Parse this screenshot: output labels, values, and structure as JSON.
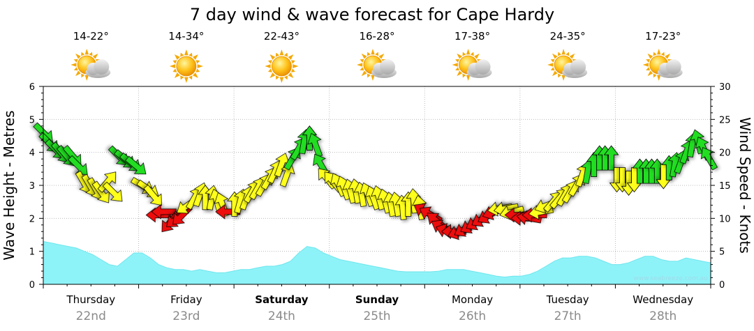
{
  "chart_data": {
    "type": "area",
    "title": "7 day wind & wave forecast for Cape Hardy",
    "ylabel": "Wave Height - Metres",
    "y2label": "Wind Speed - Knots",
    "ylim": [
      0,
      6
    ],
    "y2lim": [
      0,
      30
    ],
    "yticks": [
      "0",
      "1",
      "2",
      "3",
      "4",
      "5",
      "6"
    ],
    "y2ticks": [
      "0",
      "5",
      "10",
      "15",
      "20",
      "25",
      "30"
    ],
    "watermark": "www.seabreeze.com.au",
    "colors": {
      "wave_fill": "#8ef3f8",
      "wind_green": "#22dd22",
      "wind_yellow": "#ffff1a",
      "wind_red": "#ee1111",
      "grid": "#bbbbbb"
    },
    "days": [
      {
        "name": "Thursday",
        "date": "22nd",
        "temp": "14-22°",
        "icon": "sun-cloud-icon",
        "bold": false
      },
      {
        "name": "Friday",
        "date": "23rd",
        "temp": "14-34°",
        "icon": "sun-icon",
        "bold": false
      },
      {
        "name": "Saturday",
        "date": "24th",
        "temp": "22-43°",
        "icon": "sun-icon",
        "bold": true
      },
      {
        "name": "Sunday",
        "date": "25th",
        "temp": "16-28°",
        "icon": "sun-cloud-icon",
        "bold": true
      },
      {
        "name": "Monday",
        "date": "26th",
        "temp": "17-38°",
        "icon": "sun-cloud-icon",
        "bold": false
      },
      {
        "name": "Tuesday",
        "date": "27th",
        "temp": "24-35°",
        "icon": "sun-cloud-icon",
        "bold": false
      },
      {
        "name": "Wednesday",
        "date": "28th",
        "temp": "17-23°",
        "icon": "sun-cloud-icon",
        "bold": false
      }
    ],
    "wave_height_m": [
      1.3,
      1.25,
      1.2,
      1.15,
      1.1,
      1.0,
      0.9,
      0.75,
      0.6,
      0.55,
      0.75,
      0.95,
      0.95,
      0.8,
      0.6,
      0.5,
      0.45,
      0.45,
      0.4,
      0.45,
      0.4,
      0.35,
      0.35,
      0.4,
      0.45,
      0.45,
      0.5,
      0.55,
      0.55,
      0.6,
      0.7,
      0.95,
      1.15,
      1.1,
      0.95,
      0.85,
      0.75,
      0.7,
      0.65,
      0.6,
      0.55,
      0.5,
      0.45,
      0.4,
      0.38,
      0.38,
      0.38,
      0.38,
      0.4,
      0.45,
      0.45,
      0.45,
      0.4,
      0.35,
      0.3,
      0.25,
      0.22,
      0.25,
      0.25,
      0.3,
      0.4,
      0.55,
      0.7,
      0.8,
      0.8,
      0.85,
      0.85,
      0.8,
      0.7,
      0.6,
      0.6,
      0.65,
      0.75,
      0.85,
      0.85,
      0.75,
      0.7,
      0.7,
      0.8,
      0.75,
      0.7,
      0.65
    ],
    "wind": [
      {
        "t": 0.0,
        "kn": 23,
        "dir": 135,
        "c": "green"
      },
      {
        "t": 0.08,
        "kn": 21.5,
        "dir": 135,
        "c": "green"
      },
      {
        "t": 0.17,
        "kn": 20.5,
        "dir": 135,
        "c": "green"
      },
      {
        "t": 0.25,
        "kn": 20,
        "dir": 140,
        "c": "green"
      },
      {
        "t": 0.33,
        "kn": 19.5,
        "dir": 140,
        "c": "green"
      },
      {
        "t": 0.42,
        "kn": 19.5,
        "dir": 140,
        "c": "green"
      },
      {
        "t": 0.5,
        "kn": 18,
        "dir": 135,
        "c": "green"
      },
      {
        "t": 0.58,
        "kn": 15.5,
        "dir": 150,
        "c": "yellow"
      },
      {
        "t": 0.67,
        "kn": 15,
        "dir": 150,
        "c": "yellow"
      },
      {
        "t": 0.75,
        "kn": 14.5,
        "dir": 150,
        "c": "yellow"
      },
      {
        "t": 0.83,
        "kn": 14,
        "dir": 145,
        "c": "yellow"
      },
      {
        "t": 0.92,
        "kn": 15.5,
        "dir": 40,
        "c": "yellow"
      },
      {
        "t": 1.0,
        "kn": 14,
        "dir": 135,
        "c": "yellow"
      },
      {
        "t": 1.08,
        "kn": 19.5,
        "dir": 135,
        "c": "green"
      },
      {
        "t": 1.17,
        "kn": 19,
        "dir": 130,
        "c": "green"
      },
      {
        "t": 1.25,
        "kn": 18.5,
        "dir": 130,
        "c": "green"
      },
      {
        "t": 1.33,
        "kn": 18,
        "dir": 130,
        "c": "green"
      },
      {
        "t": 1.42,
        "kn": 15,
        "dir": 120,
        "c": "yellow"
      },
      {
        "t": 1.5,
        "kn": 14.5,
        "dir": 125,
        "c": "yellow"
      },
      {
        "t": 1.58,
        "kn": 13.5,
        "dir": 140,
        "c": "yellow"
      },
      {
        "t": 1.67,
        "kn": 10.5,
        "dir": 270,
        "c": "red"
      },
      {
        "t": 1.75,
        "kn": 11,
        "dir": 270,
        "c": "red"
      },
      {
        "t": 1.83,
        "kn": 9.5,
        "dir": 220,
        "c": "red"
      },
      {
        "t": 1.92,
        "kn": 10,
        "dir": 230,
        "c": "red"
      },
      {
        "t": 2.0,
        "kn": 10.5,
        "dir": 225,
        "c": "red"
      },
      {
        "t": 2.08,
        "kn": 12,
        "dir": 235,
        "c": "yellow"
      },
      {
        "t": 2.17,
        "kn": 13,
        "dir": 30,
        "c": "yellow"
      },
      {
        "t": 2.25,
        "kn": 13.5,
        "dir": 20,
        "c": "yellow"
      },
      {
        "t": 2.33,
        "kn": 13,
        "dir": 0,
        "c": "yellow"
      },
      {
        "t": 2.42,
        "kn": 13,
        "dir": 10,
        "c": "yellow"
      },
      {
        "t": 2.5,
        "kn": 12.5,
        "dir": 345,
        "c": "yellow"
      },
      {
        "t": 2.58,
        "kn": 12,
        "dir": 340,
        "c": "yellow"
      },
      {
        "t": 2.67,
        "kn": 11,
        "dir": 270,
        "c": "red"
      },
      {
        "t": 2.75,
        "kn": 12,
        "dir": 0,
        "c": "yellow"
      },
      {
        "t": 2.83,
        "kn": 12.5,
        "dir": 15,
        "c": "yellow"
      },
      {
        "t": 2.92,
        "kn": 13,
        "dir": 20,
        "c": "yellow"
      },
      {
        "t": 3.0,
        "kn": 14,
        "dir": 30,
        "c": "yellow"
      },
      {
        "t": 3.08,
        "kn": 14.5,
        "dir": 30,
        "c": "yellow"
      },
      {
        "t": 3.17,
        "kn": 15,
        "dir": 30,
        "c": "yellow"
      },
      {
        "t": 3.25,
        "kn": 16,
        "dir": 30,
        "c": "yellow"
      },
      {
        "t": 3.33,
        "kn": 17,
        "dir": 25,
        "c": "yellow"
      },
      {
        "t": 3.42,
        "kn": 18,
        "dir": 20,
        "c": "yellow"
      },
      {
        "t": 3.5,
        "kn": 16.5,
        "dir": 20,
        "c": "yellow"
      },
      {
        "t": 3.58,
        "kn": 19,
        "dir": 30,
        "c": "green"
      },
      {
        "t": 3.67,
        "kn": 20.5,
        "dir": 30,
        "c": "green"
      },
      {
        "t": 3.75,
        "kn": 21.5,
        "dir": 10,
        "c": "green"
      },
      {
        "t": 3.83,
        "kn": 22,
        "dir": 0,
        "c": "green"
      },
      {
        "t": 3.92,
        "kn": 21,
        "dir": 340,
        "c": "green"
      },
      {
        "t": 4.0,
        "kn": 18,
        "dir": 330,
        "c": "green"
      },
      {
        "t": 4.08,
        "kn": 16,
        "dir": 320,
        "c": "yellow"
      },
      {
        "t": 4.17,
        "kn": 15.5,
        "dir": 320,
        "c": "yellow"
      },
      {
        "t": 4.25,
        "kn": 15,
        "dir": 335,
        "c": "yellow"
      },
      {
        "t": 4.33,
        "kn": 14.5,
        "dir": 340,
        "c": "yellow"
      },
      {
        "t": 4.42,
        "kn": 14,
        "dir": 345,
        "c": "yellow"
      },
      {
        "t": 4.5,
        "kn": 14,
        "dir": 350,
        "c": "yellow"
      },
      {
        "t": 4.58,
        "kn": 13.5,
        "dir": 350,
        "c": "yellow"
      },
      {
        "t": 4.67,
        "kn": 13.5,
        "dir": 340,
        "c": "yellow"
      },
      {
        "t": 4.75,
        "kn": 13,
        "dir": 340,
        "c": "yellow"
      },
      {
        "t": 4.83,
        "kn": 13,
        "dir": 345,
        "c": "yellow"
      },
      {
        "t": 4.92,
        "kn": 12.5,
        "dir": 345,
        "c": "yellow"
      },
      {
        "t": 5.0,
        "kn": 12,
        "dir": 350,
        "c": "yellow"
      },
      {
        "t": 5.08,
        "kn": 12,
        "dir": 350,
        "c": "yellow"
      },
      {
        "t": 5.17,
        "kn": 11.5,
        "dir": 355,
        "c": "yellow"
      },
      {
        "t": 5.25,
        "kn": 12,
        "dir": 0,
        "c": "yellow"
      },
      {
        "t": 5.33,
        "kn": 12.5,
        "dir": 355,
        "c": "yellow"
      },
      {
        "t": 5.42,
        "kn": 11.5,
        "dir": 350,
        "c": "yellow"
      },
      {
        "t": 5.5,
        "kn": 11,
        "dir": 300,
        "c": "red"
      },
      {
        "t": 5.58,
        "kn": 10.5,
        "dir": 300,
        "c": "red"
      },
      {
        "t": 5.67,
        "kn": 9.5,
        "dir": 310,
        "c": "red"
      },
      {
        "t": 5.75,
        "kn": 8.5,
        "dir": 300,
        "c": "red"
      },
      {
        "t": 5.83,
        "kn": 8,
        "dir": 290,
        "c": "red"
      },
      {
        "t": 5.92,
        "kn": 8,
        "dir": 270,
        "c": "red"
      },
      {
        "t": 6.0,
        "kn": 8,
        "dir": 250,
        "c": "red"
      },
      {
        "t": 6.08,
        "kn": 8.5,
        "dir": 240,
        "c": "red"
      },
      {
        "t": 6.17,
        "kn": 9,
        "dir": 240,
        "c": "red"
      },
      {
        "t": 6.25,
        "kn": 9.5,
        "dir": 240,
        "c": "red"
      },
      {
        "t": 6.33,
        "kn": 10,
        "dir": 240,
        "c": "red"
      },
      {
        "t": 6.42,
        "kn": 10.5,
        "dir": 240,
        "c": "red"
      },
      {
        "t": 6.5,
        "kn": 11,
        "dir": 250,
        "c": "red"
      },
      {
        "t": 6.58,
        "kn": 11.5,
        "dir": 260,
        "c": "yellow"
      },
      {
        "t": 6.67,
        "kn": 11.5,
        "dir": 260,
        "c": "yellow"
      },
      {
        "t": 6.75,
        "kn": 11,
        "dir": 255,
        "c": "yellow"
      },
      {
        "t": 6.83,
        "kn": 10.5,
        "dir": 270,
        "c": "red"
      },
      {
        "t": 6.92,
        "kn": 10,
        "dir": 270,
        "c": "red"
      },
      {
        "t": 7.0,
        "kn": 10,
        "dir": 280,
        "c": "red"
      },
      {
        "t": 7.08,
        "kn": 10.5,
        "dir": 270,
        "c": "red"
      },
      {
        "t": 7.17,
        "kn": 11,
        "dir": 260,
        "c": "yellow"
      },
      {
        "t": 7.25,
        "kn": 12,
        "dir": 250,
        "c": "yellow"
      },
      {
        "t": 7.33,
        "kn": 12.5,
        "dir": 40,
        "c": "yellow"
      },
      {
        "t": 7.42,
        "kn": 13,
        "dir": 40,
        "c": "yellow"
      },
      {
        "t": 7.5,
        "kn": 13.5,
        "dir": 30,
        "c": "yellow"
      },
      {
        "t": 7.58,
        "kn": 14,
        "dir": 30,
        "c": "yellow"
      },
      {
        "t": 7.67,
        "kn": 15,
        "dir": 30,
        "c": "yellow"
      },
      {
        "t": 7.75,
        "kn": 16.5,
        "dir": 20,
        "c": "yellow"
      },
      {
        "t": 7.83,
        "kn": 17,
        "dir": 10,
        "c": "green"
      },
      {
        "t": 7.92,
        "kn": 18,
        "dir": 0,
        "c": "green"
      },
      {
        "t": 8.0,
        "kn": 19,
        "dir": 0,
        "c": "green"
      },
      {
        "t": 8.08,
        "kn": 19,
        "dir": 0,
        "c": "green"
      },
      {
        "t": 8.17,
        "kn": 19,
        "dir": 0,
        "c": "green"
      },
      {
        "t": 8.25,
        "kn": 16,
        "dir": 180,
        "c": "yellow"
      },
      {
        "t": 8.33,
        "kn": 16,
        "dir": 180,
        "c": "yellow"
      },
      {
        "t": 8.42,
        "kn": 15.5,
        "dir": 180,
        "c": "yellow"
      },
      {
        "t": 8.5,
        "kn": 16,
        "dir": 180,
        "c": "yellow"
      },
      {
        "t": 8.58,
        "kn": 17,
        "dir": 0,
        "c": "green"
      },
      {
        "t": 8.67,
        "kn": 17,
        "dir": 0,
        "c": "green"
      },
      {
        "t": 8.75,
        "kn": 17,
        "dir": 0,
        "c": "green"
      },
      {
        "t": 8.83,
        "kn": 17,
        "dir": 0,
        "c": "green"
      },
      {
        "t": 8.92,
        "kn": 16.5,
        "dir": 180,
        "c": "yellow"
      },
      {
        "t": 9.0,
        "kn": 17.5,
        "dir": 0,
        "c": "green"
      },
      {
        "t": 9.08,
        "kn": 18,
        "dir": 10,
        "c": "green"
      },
      {
        "t": 9.17,
        "kn": 18.5,
        "dir": 20,
        "c": "green"
      },
      {
        "t": 9.25,
        "kn": 20,
        "dir": 20,
        "c": "green"
      },
      {
        "t": 9.33,
        "kn": 21,
        "dir": 10,
        "c": "green"
      },
      {
        "t": 9.42,
        "kn": 21.5,
        "dir": 345,
        "c": "green"
      },
      {
        "t": 9.5,
        "kn": 20.5,
        "dir": 335,
        "c": "green"
      },
      {
        "t": 9.58,
        "kn": 19,
        "dir": 330,
        "c": "green"
      }
    ],
    "wind_t_max": 9.6
  }
}
